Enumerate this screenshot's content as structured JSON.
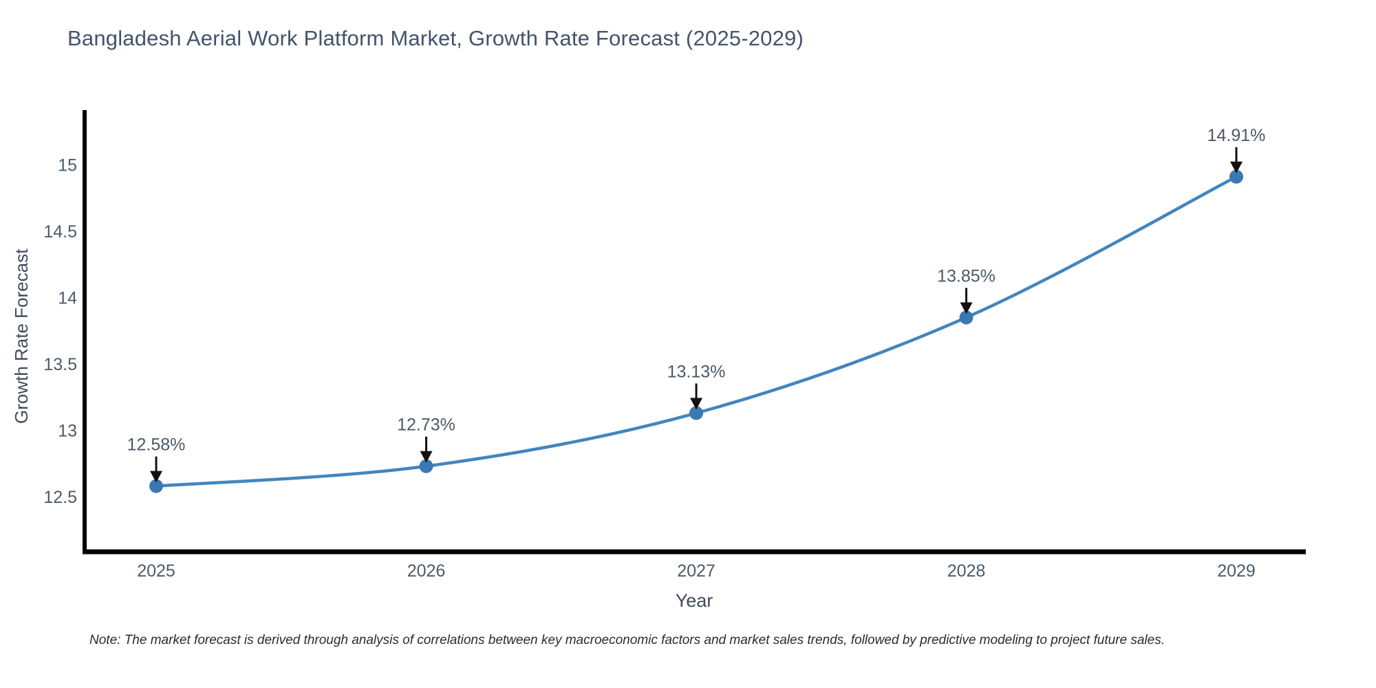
{
  "title": "Bangladesh Aerial Work Platform Market, Growth Rate Forecast (2025-2029)",
  "note": "Note: The market forecast is derived through analysis of correlations between key macroeconomic factors and market sales trends, followed by predictive modeling to project future sales.",
  "chart_data": {
    "type": "line",
    "title": "Bangladesh Aerial Work Platform Market, Growth Rate Forecast (2025-2029)",
    "xlabel": "Year",
    "ylabel": "Growth Rate Forecast",
    "x": [
      2025,
      2026,
      2027,
      2028,
      2029
    ],
    "y": [
      12.58,
      12.73,
      13.13,
      13.85,
      14.91
    ],
    "point_labels": [
      "12.58%",
      "12.73%",
      "13.13%",
      "13.85%",
      "14.91%"
    ],
    "x_tick_labels": [
      "2025",
      "2026",
      "2027",
      "2028",
      "2029"
    ],
    "y_ticks": [
      12.5,
      13,
      13.5,
      14,
      14.5,
      15
    ],
    "y_tick_labels": [
      "12.5",
      "13",
      "13.5",
      "14",
      "14.5",
      "15"
    ],
    "ylim": [
      12.1,
      15.4
    ],
    "grid": false,
    "legend": "none",
    "marker_style": "circle",
    "annotation_style": "arrow-down",
    "colors": {
      "line": "#4285bd",
      "marker": "#3a78b3",
      "axis": "#000000",
      "title_text": "#42536b",
      "axis_title_text": "#3f4a5a",
      "tick_text": "#4c5a68",
      "annotation_text": "#4c5866",
      "arrow": "#111111",
      "note_text": "#2b2b2b",
      "background": "#ffffff"
    }
  }
}
